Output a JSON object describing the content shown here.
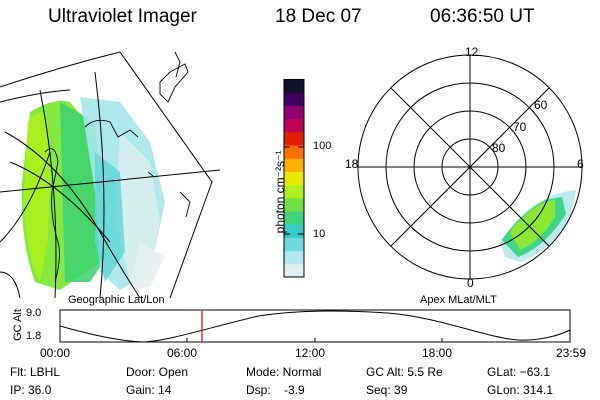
{
  "header": {
    "title": "Ultraviolet Imager",
    "date": "18 Dec 07",
    "time": "06:36:50 UT"
  },
  "geo_panel": {
    "caption": "Geographic Lat/Lon"
  },
  "color_bar": {
    "unit_label": "photon cm⁻²s⁻¹",
    "ticks": [
      "100",
      "10"
    ],
    "scale": "log",
    "colors": [
      "#e0f0f0",
      "#b0e8ee",
      "#70d8e0",
      "#38c8c8",
      "#40d080",
      "#70e040",
      "#b0f020",
      "#e8e800",
      "#ffb000",
      "#ff7000",
      "#e02000",
      "#c00050",
      "#900070",
      "#400060",
      "#101028"
    ]
  },
  "polar_panel": {
    "caption": "Apex MLat/MLT",
    "mlt_labels": {
      "top": "12",
      "left": "18",
      "right": "6",
      "bottom": "0"
    },
    "lat_labels": [
      "60",
      "70",
      "80"
    ]
  },
  "altitude_plot": {
    "ylabel": "GC Alt",
    "ytick_top": "9.0",
    "ytick_bottom": "1.8",
    "xticks": [
      "00:00",
      "06:00",
      "12:00",
      "18:00",
      "23:59"
    ],
    "marker_time": "06:36:50",
    "marker_color": "#e00000"
  },
  "info": {
    "filter": "Flt: LBHL",
    "ip": "IP: 36.0",
    "door": "Door: Open",
    "gain": "Gain: 14",
    "mode": "Mode: Normal",
    "dsp": "Dsp:    -3.9",
    "gc_alt": "GC Alt: 5.5 Re",
    "seq": "Seq: 39",
    "glat": "GLat: −63.1",
    "glon": "GLon: 314.1"
  }
}
